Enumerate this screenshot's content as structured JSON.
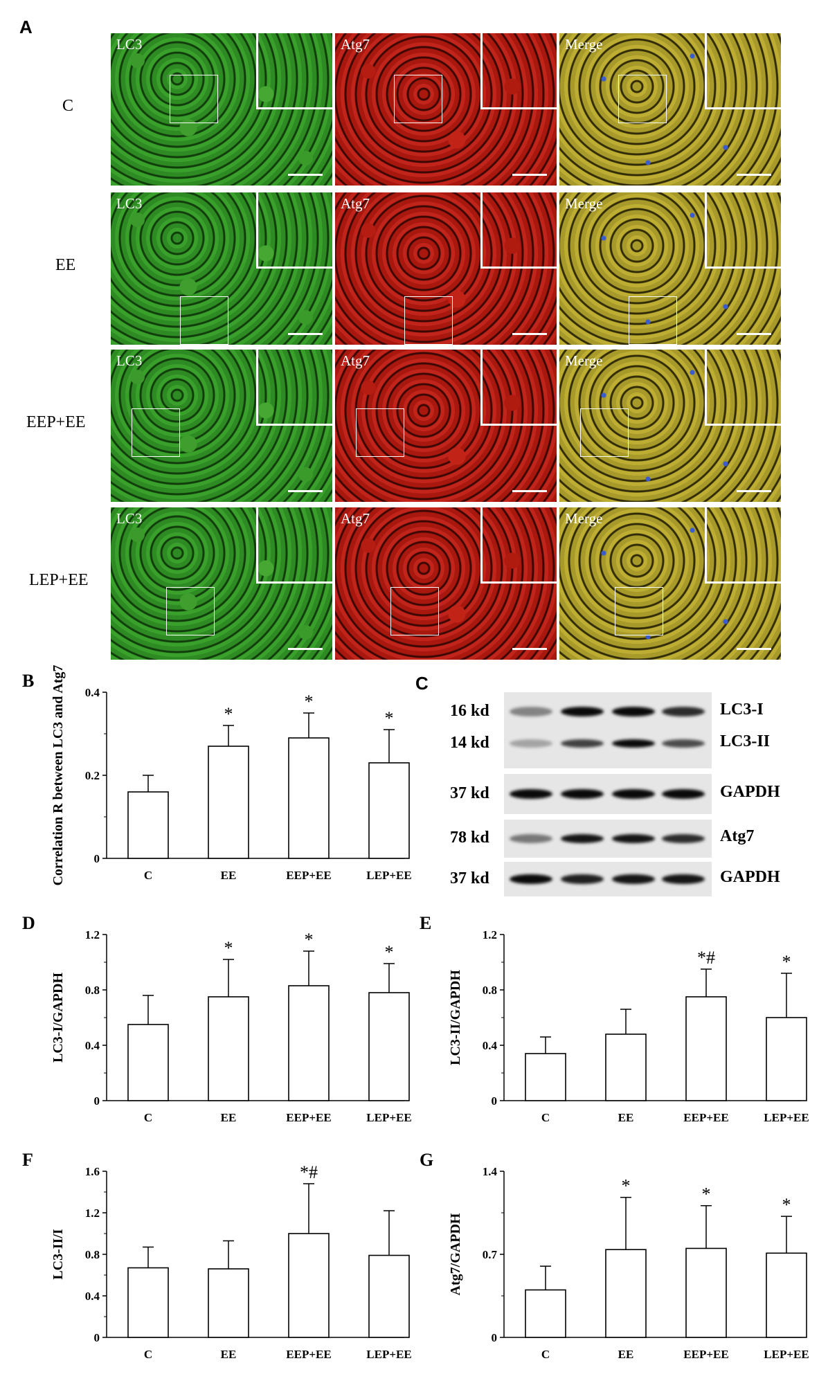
{
  "panel_a": {
    "letter": "A",
    "rows": [
      "C",
      "EE",
      "EEP+EE",
      "LEP+EE"
    ],
    "channels": [
      "LC3",
      "Atg7",
      "Merge"
    ],
    "colors": {
      "LC3": "#3aa02c",
      "Atg7": "#b81e12",
      "Merge": "#b0a42e"
    }
  },
  "panel_c": {
    "letter": "C",
    "blots": [
      {
        "sizes": [
          "16 kd",
          "14 kd"
        ],
        "labels": [
          "LC3-I",
          "LC3-II"
        ]
      },
      {
        "sizes": [
          "37 kd"
        ],
        "labels": [
          "GAPDH"
        ]
      },
      {
        "sizes": [
          "78 kd"
        ],
        "labels": [
          "Atg7"
        ]
      },
      {
        "sizes": [
          "37 kd"
        ],
        "labels": [
          "GAPDH"
        ]
      }
    ]
  },
  "chart_data": [
    {
      "panel": "B",
      "type": "bar",
      "categories": [
        "C",
        "EE",
        "EEP+EE",
        "LEP+EE"
      ],
      "values": [
        0.16,
        0.27,
        0.29,
        0.23
      ],
      "errors": [
        0.04,
        0.05,
        0.06,
        0.08
      ],
      "annotations": [
        "",
        "*",
        "*",
        "*"
      ],
      "ylabel": "Correlation R between LC3 and Atg7",
      "ylim": [
        0,
        0.4
      ],
      "yticks": [
        "0",
        "0.2",
        "0.4"
      ]
    },
    {
      "panel": "D",
      "type": "bar",
      "categories": [
        "C",
        "EE",
        "EEP+EE",
        "LEP+EE"
      ],
      "values": [
        0.55,
        0.75,
        0.83,
        0.78
      ],
      "errors": [
        0.21,
        0.27,
        0.25,
        0.21
      ],
      "annotations": [
        "",
        "*",
        "*",
        "*"
      ],
      "ylabel": "LC3-I/GAPDH",
      "ylim": [
        0,
        1.2
      ],
      "yticks": [
        "0",
        "0.4",
        "0.8",
        "1.2"
      ]
    },
    {
      "panel": "E",
      "type": "bar",
      "categories": [
        "C",
        "EE",
        "EEP+EE",
        "LEP+EE"
      ],
      "values": [
        0.34,
        0.48,
        0.75,
        0.6
      ],
      "errors": [
        0.12,
        0.18,
        0.2,
        0.32
      ],
      "annotations": [
        "",
        "",
        "*#",
        "*"
      ],
      "ylabel": "LC3-II/GAPDH",
      "ylim": [
        0,
        1.2
      ],
      "yticks": [
        "0",
        "0.4",
        "0.8",
        "1.2"
      ]
    },
    {
      "panel": "F",
      "type": "bar",
      "categories": [
        "C",
        "EE",
        "EEP+EE",
        "LEP+EE"
      ],
      "values": [
        0.67,
        0.66,
        1.0,
        0.79
      ],
      "errors": [
        0.2,
        0.27,
        0.48,
        0.43
      ],
      "annotations": [
        "",
        "",
        "*#",
        ""
      ],
      "ylabel": "LC3-II/I",
      "ylim": [
        0,
        1.6
      ],
      "yticks": [
        "0",
        "0.4",
        "0.8",
        "1.2",
        "1.6"
      ]
    },
    {
      "panel": "G",
      "type": "bar",
      "categories": [
        "C",
        "EE",
        "EEP+EE",
        "LEP+EE"
      ],
      "values": [
        0.4,
        0.74,
        0.75,
        0.71
      ],
      "errors": [
        0.2,
        0.44,
        0.36,
        0.31
      ],
      "annotations": [
        "",
        "*",
        "*",
        "*"
      ],
      "ylabel": "Atg7/GAPDH",
      "ylim": [
        0,
        1.4
      ],
      "yticks": [
        "0",
        "0.7",
        "1.4"
      ]
    }
  ]
}
